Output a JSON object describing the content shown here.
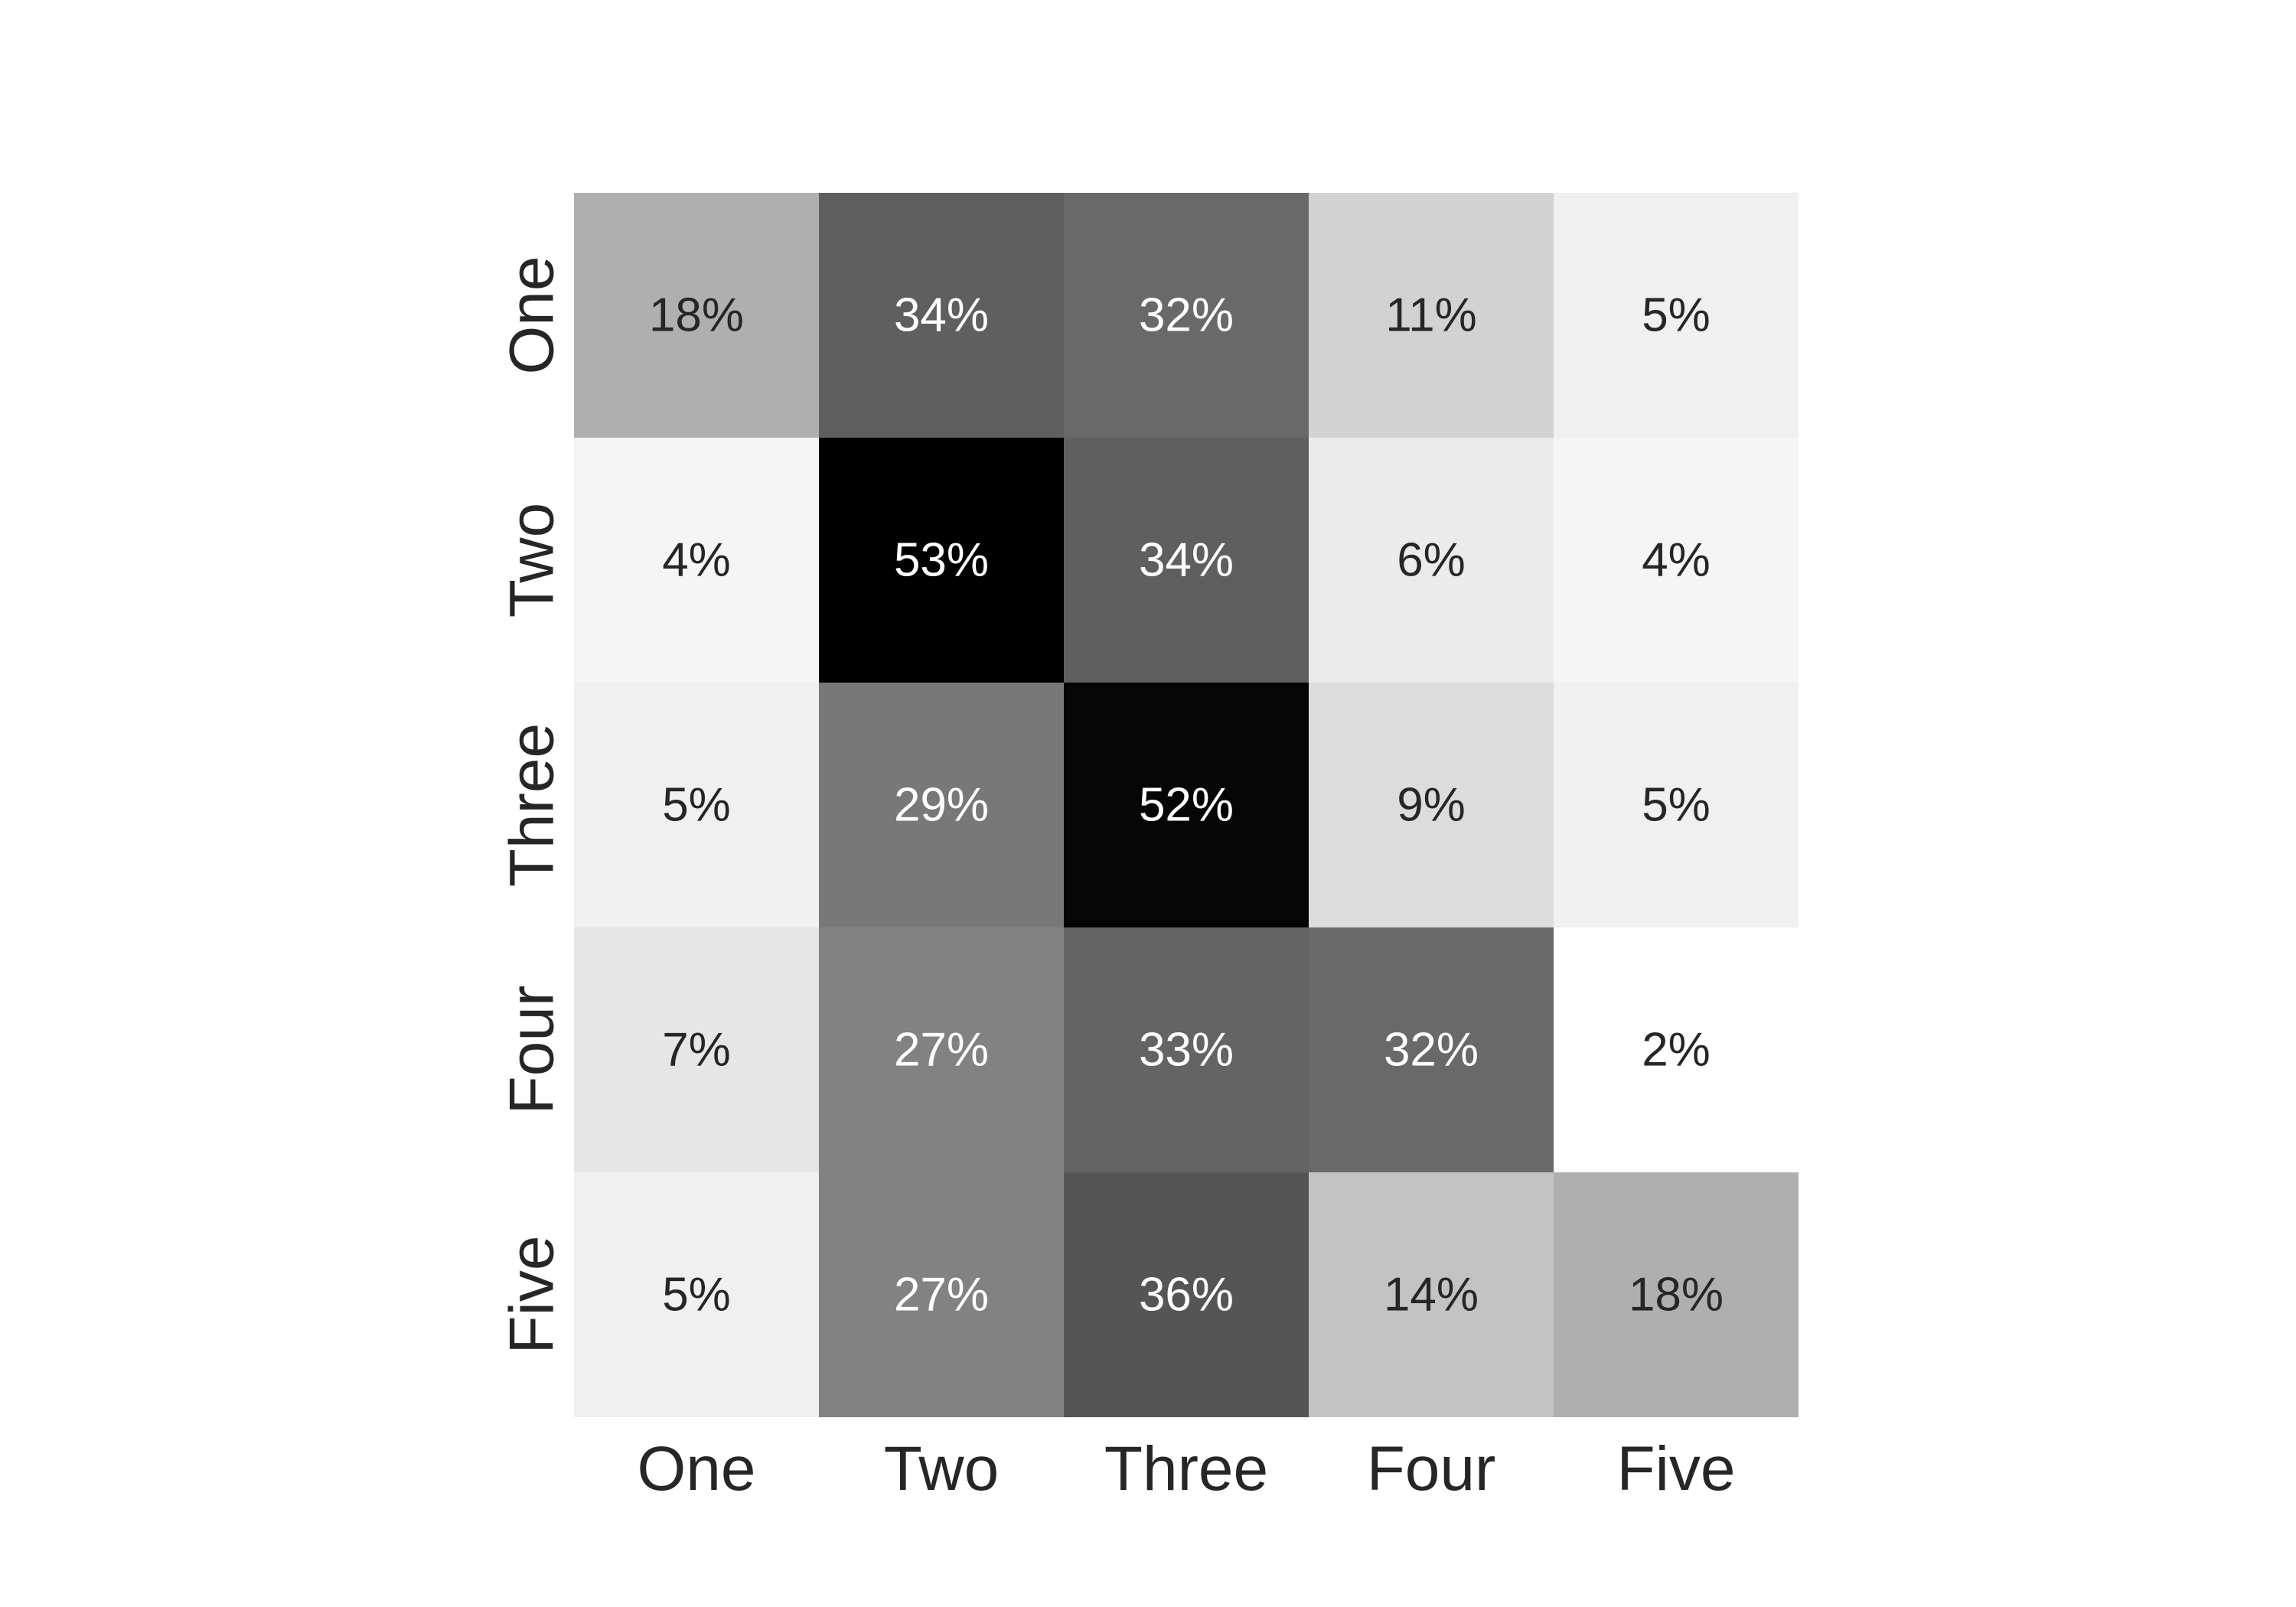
{
  "chart_data": {
    "type": "heatmap",
    "title": "",
    "xlabel": "",
    "ylabel": "",
    "x_categories": [
      "One",
      "Two",
      "Three",
      "Four",
      "Five"
    ],
    "y_categories": [
      "One",
      "Two",
      "Three",
      "Four",
      "Five"
    ],
    "values": [
      [
        18,
        34,
        32,
        11,
        5
      ],
      [
        4,
        53,
        34,
        6,
        4
      ],
      [
        5,
        29,
        52,
        9,
        5
      ],
      [
        7,
        27,
        33,
        32,
        2
      ],
      [
        5,
        27,
        36,
        14,
        18
      ]
    ],
    "value_format": "percent",
    "colormap": "greys",
    "color_range": [
      2,
      53
    ],
    "colorbar": false,
    "grid": false,
    "colors": {
      "low": "#ffffff",
      "high": "#000000",
      "dark_text": "#262626",
      "light_text": "#ffffff"
    }
  }
}
